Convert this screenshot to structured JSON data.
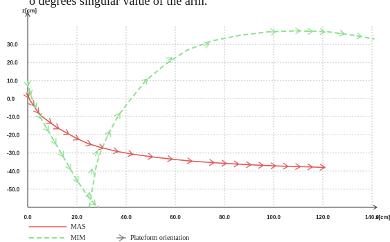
{
  "caption": "o degrees singular value of the arm.",
  "chart_data": {
    "type": "line",
    "xlabel": "x[cm]",
    "ylabel": "z[cm]",
    "xlim": [
      0,
      140
    ],
    "ylim": [
      -60,
      40
    ],
    "x_ticks": [
      "0.0",
      "20.0",
      "40.0",
      "60.0",
      "80.0",
      "100.0",
      "120.0",
      "140.0"
    ],
    "y_ticks": [
      "30.0",
      "20.0",
      "10.0",
      "0.0",
      "-10.0",
      "-20.0",
      "-30.0",
      "-40.0",
      "-50.0"
    ],
    "grid": true,
    "legend_position": "bottom-left",
    "orientation_legend": "Plateform orientation",
    "colors": {
      "MAS": "#e05a5a",
      "MIM": "#8fe08f",
      "arrow": "#777777",
      "grid": "#b8b8b8"
    },
    "series": [
      {
        "name": "MAS",
        "style": "solid",
        "x": [
          0,
          1,
          2,
          4,
          6,
          9,
          12,
          16,
          20,
          25,
          30,
          36,
          42,
          50,
          58,
          66,
          75,
          85,
          95,
          105,
          113,
          121
        ],
        "y": [
          2,
          -1,
          -3,
          -7,
          -10,
          -13,
          -16,
          -19,
          -22,
          -25,
          -27,
          -29,
          -30.5,
          -32,
          -33.3,
          -34.4,
          -35.3,
          -36.1,
          -36.8,
          -37.3,
          -37.6,
          -38
        ]
      },
      {
        "name": "MIM",
        "style": "dashed",
        "x": [
          0,
          0.5,
          1.5,
          3,
          5,
          8,
          11,
          14,
          17,
          20,
          23,
          25,
          27,
          29
        ],
        "y": [
          10,
          6,
          1,
          -4,
          -10,
          -17,
          -24,
          -31,
          -38,
          -45,
          -51,
          -55,
          -58,
          -60
        ]
      },
      {
        "name": "MIM",
        "style": "dashed",
        "x": [
          25,
          26,
          27,
          28,
          30,
          33,
          37,
          42,
          48,
          56,
          65,
          75,
          86,
          98,
          110,
          122,
          133,
          141
        ],
        "y": [
          -60,
          -52,
          -44,
          -36,
          -28,
          -19,
          -9,
          0,
          10,
          19,
          27,
          32,
          35,
          37,
          37.5,
          37,
          35,
          33
        ]
      }
    ],
    "orientation_markers": [
      {
        "series": 0,
        "points": [
          [
            0,
            1.5
          ],
          [
            2,
            -3
          ],
          [
            4,
            -7
          ],
          [
            9,
            -13
          ],
          [
            12,
            -16
          ],
          [
            16,
            -19
          ],
          [
            20,
            -22
          ],
          [
            25,
            -25
          ],
          [
            30,
            -27
          ],
          [
            36,
            -29
          ],
          [
            42,
            -30.5
          ],
          [
            50,
            -32
          ],
          [
            58,
            -33.3
          ],
          [
            66,
            -34.4
          ],
          [
            75,
            -35.3
          ],
          [
            80,
            -35.7
          ],
          [
            85,
            -36.1
          ],
          [
            90,
            -36.5
          ],
          [
            95,
            -36.8
          ],
          [
            100,
            -37.1
          ],
          [
            105,
            -37.3
          ],
          [
            110,
            -37.5
          ],
          [
            115,
            -37.7
          ],
          [
            120,
            -37.9
          ]
        ]
      },
      {
        "series": 1,
        "points": [
          [
            0,
            8
          ],
          [
            1,
            3
          ],
          [
            3,
            -4
          ],
          [
            5,
            -10
          ],
          [
            8,
            -17
          ],
          [
            11,
            -24
          ],
          [
            14,
            -31
          ],
          [
            17,
            -38
          ],
          [
            20,
            -45
          ],
          [
            27,
            -58
          ]
        ]
      },
      {
        "series": 2,
        "points": [
          [
            25,
            -53
          ],
          [
            26,
            -40
          ],
          [
            28,
            -30
          ],
          [
            33,
            -19
          ],
          [
            37,
            -9
          ],
          [
            48,
            10
          ],
          [
            58,
            22
          ],
          [
            73,
            30
          ],
          [
            100,
            37
          ],
          [
            110,
            37.5
          ],
          [
            115,
            37.2
          ],
          [
            120,
            37
          ],
          [
            128,
            36
          ],
          [
            135,
            34.5
          ]
        ]
      }
    ]
  }
}
